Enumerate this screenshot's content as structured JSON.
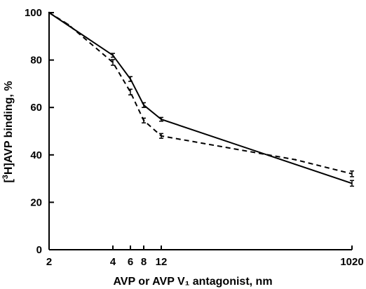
{
  "chart_data": {
    "type": "line",
    "title": "",
    "xlabel": "AVP or AVP V₁ antagonist, nm",
    "ylabel_prefix": "[",
    "ylabel_sup": "3",
    "ylabel_rest": "H]AVP binding, %",
    "x_tick_labels": [
      "2",
      "4",
      "6",
      "8",
      "12",
      "1020"
    ],
    "x_tick_values": [
      2,
      4,
      6,
      8,
      12,
      1020
    ],
    "y_ticks": [
      0,
      20,
      40,
      60,
      80,
      100
    ],
    "ylim": [
      0,
      100
    ],
    "grid": false,
    "series": [
      {
        "style": "solid",
        "x": [
          2,
          4,
          6,
          8,
          12,
          1020
        ],
        "y": [
          100,
          82,
          72,
          61,
          55,
          28
        ],
        "err": [
          0,
          0.8,
          1.0,
          1.0,
          0.8,
          1.2
        ]
      },
      {
        "style": "dashed",
        "x": [
          2,
          2.6,
          4,
          6,
          8,
          12,
          720,
          1020
        ],
        "y": [
          100,
          95,
          79,
          66.5,
          54.5,
          48,
          38,
          32
        ],
        "err": [
          0,
          0,
          1.2,
          1.2,
          1.0,
          1.0,
          0,
          1.2
        ]
      }
    ]
  }
}
